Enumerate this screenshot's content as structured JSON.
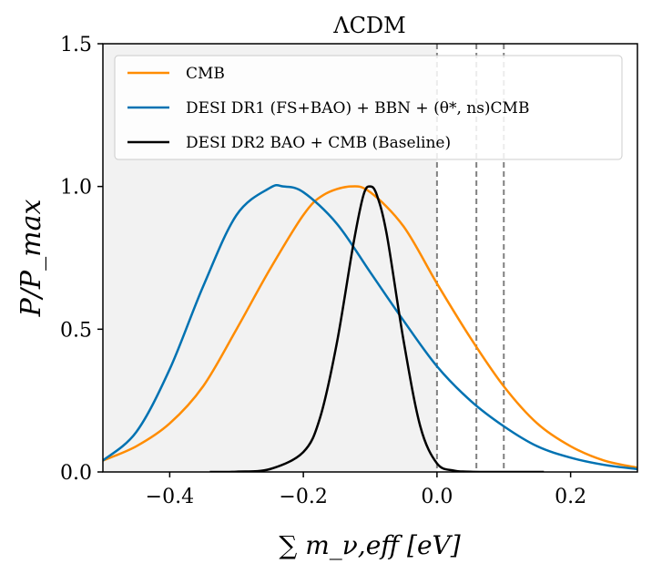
{
  "chart_data": {
    "type": "line",
    "title": "ΛCDM",
    "xlabel": "∑ m_ν,eff [eV]",
    "ylabel": "P/P_max",
    "xlim": [
      -0.5,
      0.3
    ],
    "ylim": [
      0.0,
      1.5
    ],
    "xticks": [
      -0.4,
      -0.2,
      0.0,
      0.2
    ],
    "xtick_labels": [
      "−0.4",
      "−0.2",
      "0.0",
      "0.2"
    ],
    "yticks": [
      0.0,
      0.5,
      1.0,
      1.5
    ],
    "ytick_labels": [
      "0.0",
      "0.5",
      "1.0",
      "1.5"
    ],
    "shaded_region": {
      "x_start": -0.5,
      "x_end": 0.0,
      "color": "#f2f2f2"
    },
    "vlines": [
      {
        "x": 0.0,
        "style": "dashed",
        "color": "#808080"
      },
      {
        "x": 0.059,
        "style": "dashed",
        "color": "#808080"
      },
      {
        "x": 0.1,
        "style": "dashed",
        "color": "#808080"
      }
    ],
    "legend_position": "top",
    "series": [
      {
        "name": "CMB",
        "color": "#ff8c00",
        "x": [
          -0.5,
          -0.45,
          -0.4,
          -0.35,
          -0.3,
          -0.25,
          -0.2,
          -0.17,
          -0.13,
          -0.1,
          -0.05,
          0.0,
          0.05,
          0.1,
          0.15,
          0.2,
          0.25,
          0.3
        ],
        "y": [
          0.04,
          0.09,
          0.17,
          0.3,
          0.5,
          0.71,
          0.9,
          0.97,
          1.0,
          0.98,
          0.86,
          0.66,
          0.47,
          0.3,
          0.17,
          0.09,
          0.04,
          0.015
        ]
      },
      {
        "name": "DESI DR1 (FS+BAO) + BBN + (θ*, ns)CMB",
        "color": "#0072b2",
        "x": [
          -0.5,
          -0.45,
          -0.4,
          -0.35,
          -0.3,
          -0.25,
          -0.23,
          -0.2,
          -0.15,
          -0.1,
          -0.05,
          0.0,
          0.05,
          0.1,
          0.15,
          0.2,
          0.25,
          0.3
        ],
        "y": [
          0.04,
          0.14,
          0.36,
          0.65,
          0.9,
          0.995,
          1.0,
          0.98,
          0.87,
          0.7,
          0.53,
          0.37,
          0.25,
          0.16,
          0.09,
          0.05,
          0.025,
          0.01
        ]
      },
      {
        "name": "DESI DR2 BAO + CMB (Baseline)",
        "color": "#000000",
        "x": [
          -0.34,
          -0.3,
          -0.25,
          -0.2,
          -0.175,
          -0.15,
          -0.125,
          -0.11,
          -0.1,
          -0.09,
          -0.075,
          -0.05,
          -0.025,
          0.0,
          0.025,
          0.05,
          0.075,
          0.1,
          0.16
        ],
        "y": [
          0.0,
          0.001,
          0.01,
          0.07,
          0.19,
          0.45,
          0.8,
          0.97,
          1.0,
          0.97,
          0.83,
          0.46,
          0.16,
          0.03,
          0.005,
          0.001,
          0.0,
          0.0,
          0.0
        ]
      }
    ]
  }
}
